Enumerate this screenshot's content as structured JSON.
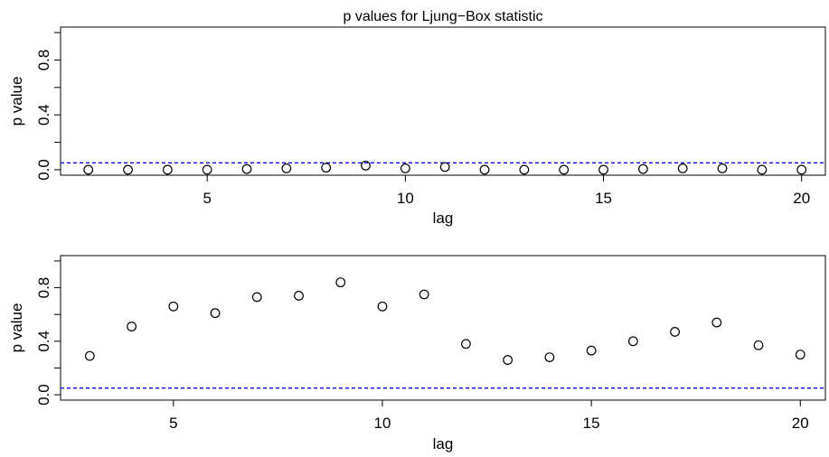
{
  "chart_data": [
    {
      "type": "scatter",
      "title": "p values for Ljung−Box statistic",
      "xlabel": "lag",
      "ylabel": "p value",
      "xlim": [
        1.3,
        20.6
      ],
      "ylim": [
        -0.04,
        1.04
      ],
      "x_ticks": [
        5,
        10,
        15,
        20
      ],
      "x_tick_labels": [
        "5",
        "10",
        "15",
        "20"
      ],
      "y_ticks": [
        0.0,
        0.2,
        0.4,
        0.6,
        0.8,
        1.0
      ],
      "y_tick_labels": [
        "0.0",
        "",
        "0.4",
        "",
        "0.8",
        ""
      ],
      "grid": false,
      "reference_line": {
        "y": 0.05,
        "color": "#0000ff",
        "style": "dashed"
      },
      "series": [
        {
          "x": [
            2,
            3,
            4,
            5,
            6,
            7,
            8,
            9,
            10,
            11,
            12,
            13,
            14,
            15,
            16,
            17,
            18,
            19,
            20
          ],
          "y": [
            0.0,
            0.0,
            0.0,
            0.0,
            0.005,
            0.01,
            0.015,
            0.03,
            0.01,
            0.02,
            0.0,
            0.0,
            0.0,
            0.0,
            0.005,
            0.01,
            0.01,
            0.0,
            0.0
          ]
        }
      ]
    },
    {
      "type": "scatter",
      "title": "",
      "xlabel": "lag",
      "ylabel": "p value",
      "xlim": [
        2.3,
        20.6
      ],
      "ylim": [
        -0.04,
        1.04
      ],
      "x_ticks": [
        5,
        10,
        15,
        20
      ],
      "x_tick_labels": [
        "5",
        "10",
        "15",
        "20"
      ],
      "y_ticks": [
        0.0,
        0.2,
        0.4,
        0.6,
        0.8,
        1.0
      ],
      "y_tick_labels": [
        "0.0",
        "",
        "0.4",
        "",
        "0.8",
        ""
      ],
      "grid": false,
      "reference_line": {
        "y": 0.05,
        "color": "#0000ff",
        "style": "dashed"
      },
      "series": [
        {
          "x": [
            3,
            4,
            5,
            6,
            7,
            8,
            9,
            10,
            11,
            12,
            13,
            14,
            15,
            16,
            17,
            18,
            19,
            20
          ],
          "y": [
            0.29,
            0.51,
            0.66,
            0.61,
            0.73,
            0.74,
            0.84,
            0.66,
            0.75,
            0.38,
            0.26,
            0.28,
            0.33,
            0.4,
            0.47,
            0.54,
            0.37,
            0.3
          ]
        }
      ]
    }
  ]
}
